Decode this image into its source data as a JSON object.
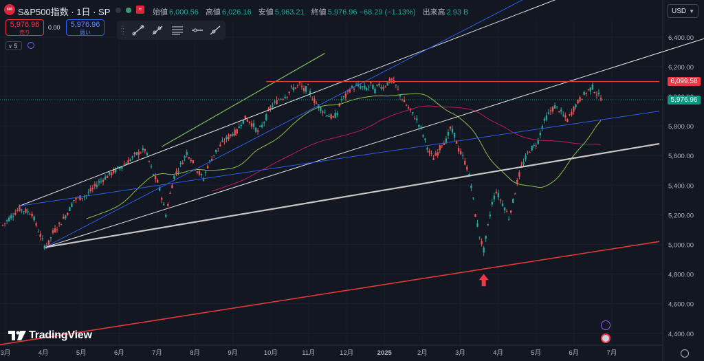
{
  "header": {
    "logo_text": "500",
    "symbol_title": "S&P500指数 · 1日 · SP",
    "flag_glyph": "≈",
    "ohlc": [
      {
        "k": "始値",
        "v": "6,000.56"
      },
      {
        "k": "高値",
        "v": "6,026.16"
      },
      {
        "k": "安値",
        "v": "5,963.21"
      },
      {
        "k": "終値",
        "v": "5,976.96 −68.29 (−1.13%)"
      },
      {
        "k": "出来高",
        "v": "2.93 B"
      }
    ],
    "currency": "USD"
  },
  "trade": {
    "sell_price": "5,976.96",
    "sell_label": "売り",
    "spread": "0.00",
    "buy_price": "5,976.96",
    "buy_label": "買い"
  },
  "indicator_toggle": "5",
  "watermark": "TradingView",
  "colors": {
    "background": "#131722",
    "up": "#26a69a",
    "down": "#ef5350",
    "white_line": "#e8e8e8",
    "blue_line": "#2f5ce6",
    "green_line": "#7cc15a",
    "red_line": "#e53935",
    "pink_ma": "#c2185b",
    "green_ma": "#8bc34a"
  },
  "chart_data": {
    "type": "candlestick",
    "title": "S&P500指数 · 1日 · SP",
    "x_tick_labels": [
      "3月",
      "4月",
      "5月",
      "6月",
      "7月",
      "8月",
      "9月",
      "10月",
      "11月",
      "12月",
      "2025",
      "2月",
      "3月",
      "4月",
      "5月",
      "6月",
      "7月"
    ],
    "y_tick_labels": [
      "6,400.00",
      "6,200.00",
      "6,000.00",
      "5,800.00",
      "5,600.00",
      "5,400.00",
      "5,200.00",
      "5,000.00",
      "4,800.00",
      "4,600.00",
      "4,400.00"
    ],
    "ylim": [
      4320,
      6520
    ],
    "price_labels": [
      {
        "value": "6,099.58",
        "color": "#f23645"
      },
      {
        "value": "5,976.96",
        "color": "#089981"
      }
    ],
    "price_path": [
      [
        0,
        5130
      ],
      [
        2,
        5190
      ],
      [
        4,
        5240
      ],
      [
        5,
        5230
      ],
      [
        7,
        5210
      ],
      [
        8,
        5130
      ],
      [
        9,
        5060
      ],
      [
        10,
        4990
      ],
      [
        11,
        5010
      ],
      [
        12,
        5080
      ],
      [
        14,
        5150
      ],
      [
        16,
        5240
      ],
      [
        17,
        5300
      ],
      [
        18,
        5310
      ],
      [
        20,
        5330
      ],
      [
        21,
        5360
      ],
      [
        23,
        5420
      ],
      [
        24,
        5440
      ],
      [
        26,
        5480
      ],
      [
        28,
        5520
      ],
      [
        30,
        5560
      ],
      [
        32,
        5610
      ],
      [
        34,
        5640
      ],
      [
        35,
        5560
      ],
      [
        36,
        5470
      ],
      [
        37,
        5420
      ],
      [
        38,
        5320
      ],
      [
        39,
        5200
      ],
      [
        40,
        5340
      ],
      [
        41,
        5460
      ],
      [
        43,
        5560
      ],
      [
        44,
        5620
      ],
      [
        45,
        5580
      ],
      [
        46,
        5520
      ],
      [
        47,
        5480
      ],
      [
        48,
        5440
      ],
      [
        49,
        5530
      ],
      [
        51,
        5630
      ],
      [
        53,
        5700
      ],
      [
        55,
        5750
      ],
      [
        56,
        5760
      ],
      [
        57,
        5820
      ],
      [
        58,
        5850
      ],
      [
        59,
        5830
      ],
      [
        60,
        5800
      ],
      [
        61,
        5760
      ],
      [
        62,
        5800
      ],
      [
        63,
        5860
      ],
      [
        64,
        5920
      ],
      [
        66,
        5980
      ],
      [
        68,
        6010
      ],
      [
        69,
        6050
      ],
      [
        70,
        6060
      ],
      [
        71,
        6080
      ],
      [
        72,
        6040
      ],
      [
        73,
        6060
      ],
      [
        74,
        5990
      ],
      [
        75,
        5950
      ],
      [
        76,
        5920
      ],
      [
        77,
        5890
      ],
      [
        78,
        5870
      ],
      [
        79,
        5850
      ],
      [
        80,
        5890
      ],
      [
        81,
        5980
      ],
      [
        82,
        6000
      ],
      [
        83,
        6050
      ],
      [
        84,
        6060
      ],
      [
        85,
        6070
      ],
      [
        86,
        6060
      ],
      [
        87,
        6050
      ],
      [
        88,
        6080
      ],
      [
        89,
        6040
      ],
      [
        90,
        6080
      ],
      [
        91,
        6060
      ],
      [
        92,
        6090
      ],
      [
        93,
        6110
      ],
      [
        94,
        6070
      ],
      [
        95,
        6010
      ],
      [
        96,
        5960
      ],
      [
        97,
        5920
      ],
      [
        98,
        5880
      ],
      [
        99,
        5840
      ],
      [
        100,
        5780
      ],
      [
        101,
        5700
      ],
      [
        102,
        5620
      ],
      [
        103,
        5580
      ],
      [
        104,
        5620
      ],
      [
        105,
        5680
      ],
      [
        106,
        5700
      ],
      [
        107,
        5780
      ],
      [
        108,
        5740
      ],
      [
        109,
        5640
      ],
      [
        110,
        5590
      ],
      [
        111,
        5520
      ],
      [
        112,
        5400
      ],
      [
        113,
        5200
      ],
      [
        114,
        5060
      ],
      [
        115,
        4960
      ],
      [
        116,
        5120
      ],
      [
        117,
        5280
      ],
      [
        118,
        5360
      ],
      [
        119,
        5300
      ],
      [
        120,
        5250
      ],
      [
        121,
        5180
      ],
      [
        122,
        5290
      ],
      [
        123,
        5420
      ],
      [
        124,
        5520
      ],
      [
        125,
        5580
      ],
      [
        126,
        5640
      ],
      [
        127,
        5660
      ],
      [
        128,
        5700
      ],
      [
        129,
        5800
      ],
      [
        130,
        5860
      ],
      [
        131,
        5900
      ],
      [
        132,
        5930
      ],
      [
        133,
        5910
      ],
      [
        134,
        5870
      ],
      [
        135,
        5840
      ],
      [
        136,
        5890
      ],
      [
        137,
        5940
      ],
      [
        138,
        5980
      ],
      [
        139,
        6010
      ],
      [
        140,
        6040
      ],
      [
        141,
        6060
      ],
      [
        142,
        6020
      ],
      [
        143,
        5990
      ]
    ],
    "x_domain_days": 143
  }
}
